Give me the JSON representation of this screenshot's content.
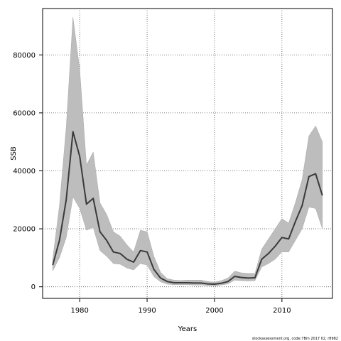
{
  "chart_data": {
    "type": "line",
    "xlabel": "Years",
    "ylabel": "SSB",
    "xlim": [
      1974.5,
      2017.5
    ],
    "ylim": [
      -4000,
      96000
    ],
    "x_ticks": [
      1980,
      1990,
      2000,
      2010
    ],
    "y_ticks": [
      0,
      20000,
      40000,
      60000,
      80000
    ],
    "x_tick_labels": [
      "1980",
      "1990",
      "2000",
      "2010"
    ],
    "y_tick_labels": [
      "0",
      "20000",
      "40000",
      "60000",
      "80000"
    ],
    "grid": true,
    "legend": "none",
    "colors": {
      "line": "#3a3a3a",
      "band": "#bdbdbd",
      "grid": "#555555"
    },
    "x": [
      1976,
      1977,
      1978,
      1979,
      1980,
      1981,
      1982,
      1983,
      1984,
      1985,
      1986,
      1987,
      1988,
      1989,
      1990,
      1991,
      1992,
      1993,
      1994,
      1995,
      1996,
      1997,
      1998,
      1999,
      2000,
      2001,
      2002,
      2003,
      2004,
      2005,
      2006,
      2007,
      2008,
      2009,
      2010,
      2011,
      2012,
      2013,
      2014,
      2015,
      2016
    ],
    "series": [
      {
        "values": [
          7500,
          16000,
          30000,
          53500,
          45000,
          28500,
          30500,
          19000,
          16000,
          12000,
          11500,
          9500,
          8500,
          12500,
          12000,
          6000,
          3000,
          1800,
          1400,
          1400,
          1400,
          1300,
          1300,
          1000,
          900,
          1200,
          1800,
          3600,
          3200,
          3000,
          3100,
          9500,
          11500,
          14000,
          17000,
          16500,
          22500,
          28000,
          38000,
          39000,
          31500
        ]
      }
    ],
    "band": {
      "upper": [
        9500,
        28000,
        55000,
        93000,
        75000,
        42000,
        46500,
        29000,
        25000,
        19000,
        17500,
        14500,
        12000,
        19500,
        19000,
        10500,
        5000,
        2800,
        2300,
        2200,
        2300,
        2300,
        2300,
        1800,
        1600,
        2100,
        3000,
        5400,
        4800,
        4600,
        4600,
        13000,
        16500,
        20000,
        23500,
        22000,
        29000,
        37000,
        52000,
        55500,
        50000
      ],
      "lower": [
        5500,
        10000,
        17000,
        31000,
        27000,
        19500,
        20500,
        12500,
        10500,
        8000,
        7800,
        6500,
        5800,
        8000,
        7500,
        3500,
        1700,
        900,
        700,
        700,
        700,
        600,
        600,
        400,
        350,
        600,
        1000,
        2300,
        2100,
        2000,
        2100,
        6800,
        8000,
        9500,
        12000,
        12000,
        16000,
        20000,
        27500,
        27000,
        20000
      ]
    },
    "footer": "stockassessment.org, code:7Bm 2017 02, r8982"
  }
}
